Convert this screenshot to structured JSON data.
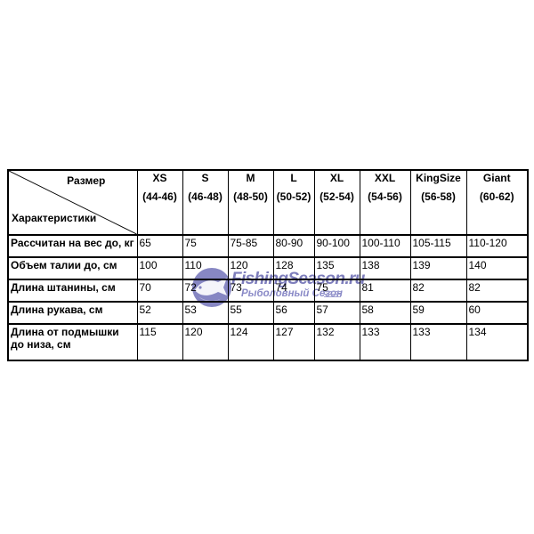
{
  "page": {
    "background_color": "#ffffff",
    "border_color": "#000000",
    "text_color": "#000000"
  },
  "chart_data": {
    "type": "table",
    "title": "",
    "corner": {
      "top": "Размер",
      "bottom": "Характеристики"
    },
    "columns": [
      {
        "size": "XS",
        "range": "(44-46)"
      },
      {
        "size": "S",
        "range": "(46-48)"
      },
      {
        "size": "M",
        "range": "(48-50)"
      },
      {
        "size": "L",
        "range": "(50-52)"
      },
      {
        "size": "XL",
        "range": "(52-54)"
      },
      {
        "size": "XXL",
        "range": "(54-56)"
      },
      {
        "size": "KingSize",
        "range": "(56-58)"
      },
      {
        "size": "Giant",
        "range": "(60-62)"
      }
    ],
    "rows": [
      {
        "label": "Рассчитан на вес до, кг",
        "values": [
          "65",
          "75",
          "75-85",
          "80-90",
          "90-100",
          "100-110",
          "105-115",
          "110-120"
        ]
      },
      {
        "label": "Объем талии до, см",
        "values": [
          "100",
          "110",
          "120",
          "128",
          "135",
          "138",
          "139",
          "140"
        ]
      },
      {
        "label": "Длина штанины, см",
        "values": [
          "70",
          "72",
          "73",
          "74",
          "75",
          "81",
          "82",
          "82"
        ]
      },
      {
        "label": "Длина рукава, см",
        "values": [
          "52",
          "53",
          "55",
          "56",
          "57",
          "58",
          "59",
          "60"
        ]
      },
      {
        "label": "Длина от подмышки до низа, см",
        "values": [
          "115",
          "120",
          "124",
          "127",
          "132",
          "133",
          "133",
          "134"
        ]
      }
    ]
  },
  "watermark": {
    "brand": "FishingSeason.ru",
    "subtitle": "Рыболовный Сезон",
    "icon": "globe-fish-icon",
    "color": "#7d7dbe"
  }
}
